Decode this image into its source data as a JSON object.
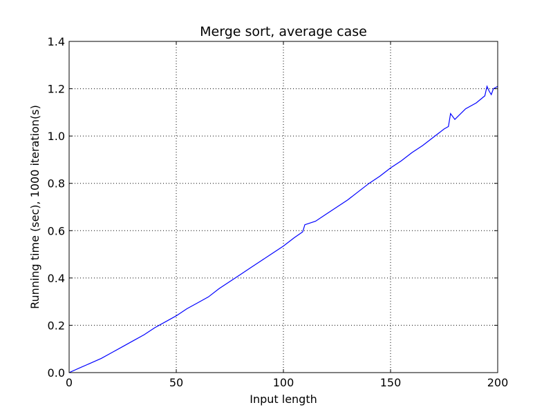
{
  "chart_data": {
    "type": "line",
    "title": "Merge sort, average case",
    "xlabel": "Input length",
    "ylabel": "Running time (sec), 1000 iteration(s)",
    "xlim": [
      0,
      200
    ],
    "ylim": [
      0.0,
      1.4
    ],
    "xticks": [
      "0",
      "50",
      "100",
      "150",
      "200"
    ],
    "yticks": [
      "0.0",
      "0.2",
      "0.4",
      "0.6",
      "0.8",
      "1.0",
      "1.2",
      "1.4"
    ],
    "grid": true,
    "series": [
      {
        "color": "#0000ff",
        "x": [
          0,
          5,
          10,
          15,
          20,
          25,
          30,
          35,
          40,
          45,
          50,
          55,
          60,
          65,
          70,
          75,
          80,
          85,
          90,
          95,
          100,
          105,
          109,
          110,
          115,
          120,
          125,
          130,
          135,
          140,
          145,
          150,
          155,
          160,
          165,
          170,
          175,
          177,
          178,
          180,
          185,
          190,
          194,
          195,
          196,
          197,
          198,
          200
        ],
        "y": [
          0.0,
          0.02,
          0.04,
          0.06,
          0.085,
          0.11,
          0.135,
          0.16,
          0.19,
          0.215,
          0.24,
          0.27,
          0.295,
          0.32,
          0.355,
          0.385,
          0.415,
          0.445,
          0.475,
          0.505,
          0.535,
          0.57,
          0.595,
          0.625,
          0.64,
          0.67,
          0.7,
          0.73,
          0.765,
          0.8,
          0.83,
          0.865,
          0.895,
          0.93,
          0.96,
          0.995,
          1.03,
          1.04,
          1.095,
          1.07,
          1.115,
          1.14,
          1.17,
          1.21,
          1.19,
          1.175,
          1.2,
          1.21
        ]
      }
    ]
  }
}
